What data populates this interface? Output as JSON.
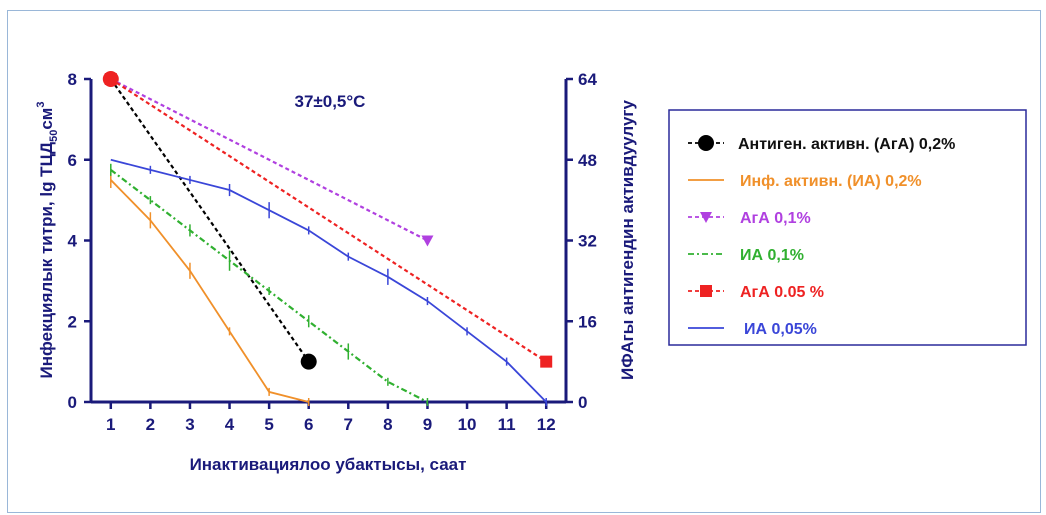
{
  "chart_data": {
    "type": "line",
    "annotation": "37±0,5°C",
    "xlabel": "Инактивациялоо убактысы, саат",
    "ylabel_left_main": "Инфекциялык титри, lg ТЦД",
    "ylabel_left_sub": "50",
    "ylabel_left_unit": "см",
    "ylabel_left_sup": "3",
    "ylabel_right": "ИФАгы антигендин активдуулугу",
    "x_ticks": [
      "1",
      "2",
      "3",
      "4",
      "5",
      "6",
      "7",
      "8",
      "9",
      "10",
      "11",
      "12"
    ],
    "xlim": [
      0.5,
      12.5
    ],
    "y_left_ticks": [
      "0",
      "2",
      "4",
      "6",
      "8"
    ],
    "y_left_lim": [
      0,
      8
    ],
    "y_right_ticks": [
      "0",
      "16",
      "32",
      "48",
      "64"
    ],
    "y_right_lim": [
      0,
      64
    ],
    "grid": false,
    "legend_position": "right",
    "series": [
      {
        "name": "Антиген. активн. (АгА) 0,2%",
        "color": "#000000",
        "dash": "4,3",
        "marker": "circle",
        "axis": "right",
        "legend_color": "#000000",
        "x": [
          1,
          6
        ],
        "y": [
          64,
          8
        ]
      },
      {
        "name": "Инф. активн. (ИА) 0,2%",
        "color": "#f0902a",
        "dash": "",
        "marker": "none",
        "axis": "left",
        "legend_color": "#f0902a",
        "x": [
          1,
          2,
          3,
          4,
          5,
          6
        ],
        "y": [
          5.5,
          4.5,
          3.25,
          1.75,
          0.25,
          0
        ],
        "err": [
          0.2,
          0.2,
          0.2,
          0.1,
          0,
          0
        ]
      },
      {
        "name": "АгА 0,1%",
        "color": "#b040e0",
        "dash": "4,3",
        "marker": "triangle",
        "axis": "right",
        "legend_color": "#b040e0",
        "x": [
          1,
          9
        ],
        "y": [
          64,
          32
        ]
      },
      {
        "name": "ИА 0,1%",
        "color": "#30b030",
        "dash": "6,3,2,3",
        "marker": "none",
        "axis": "left",
        "legend_color": "#30b030",
        "x": [
          1,
          2,
          3,
          4,
          5,
          6,
          7,
          8,
          9
        ],
        "y": [
          5.75,
          5.0,
          4.25,
          3.5,
          2.75,
          2.0,
          1.25,
          0.5,
          0
        ],
        "err": [
          0.15,
          0.1,
          0.15,
          0.25,
          0.1,
          0.15,
          0.2,
          0.05,
          0
        ]
      },
      {
        "name": "АгА 0.05 %",
        "color": "#ee2222",
        "dash": "4,3",
        "marker": "square",
        "axis": "right",
        "legend_color": "#ee2222",
        "x": [
          1,
          12
        ],
        "y": [
          64,
          8
        ]
      },
      {
        "name": "ИА 0,05%",
        "color": "#3a46d8",
        "dash": "",
        "marker": "none",
        "axis": "left",
        "legend_color": "#3a46d8",
        "x": [
          1,
          2,
          3,
          4,
          5,
          6,
          7,
          8,
          9,
          10,
          11,
          12
        ],
        "y": [
          6.0,
          5.75,
          5.5,
          5.25,
          4.75,
          4.25,
          3.6,
          3.1,
          2.5,
          1.75,
          1.0,
          0
        ],
        "err": [
          0,
          0.1,
          0.1,
          0.15,
          0.2,
          0.1,
          0.1,
          0.2,
          0.1,
          0.1,
          0.1,
          0
        ]
      }
    ]
  }
}
